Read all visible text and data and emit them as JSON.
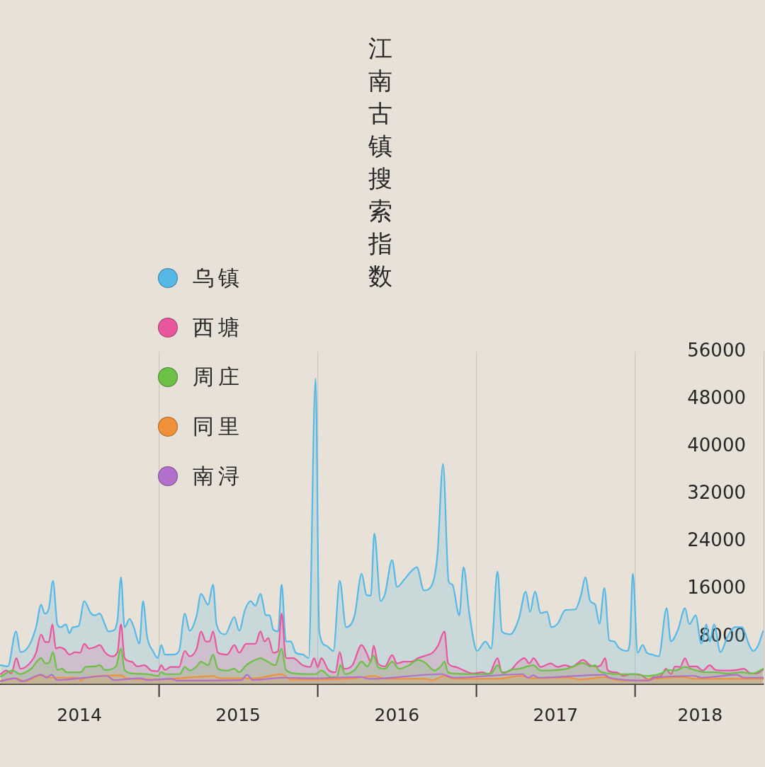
{
  "chart_data": {
    "type": "area",
    "title": "江南古镇搜索指数",
    "legend": "top left",
    "grid": "x",
    "marker": "none",
    "xlim": [
      2014,
      2018.81
    ],
    "xticks": [
      {
        "value": 2014.5,
        "label": "2014"
      },
      {
        "value": 2015,
        "label": null
      },
      {
        "value": 2015.5,
        "label": "2015"
      },
      {
        "value": 2016,
        "label": null
      },
      {
        "value": 2016.5,
        "label": "2016"
      },
      {
        "value": 2017,
        "label": null
      },
      {
        "value": 2017.5,
        "label": "2017"
      },
      {
        "value": 2018,
        "label": null
      },
      {
        "value": 2018.41,
        "label": "2018"
      }
    ],
    "ylim": [
      0,
      56000
    ],
    "yticks": [
      8000,
      16000,
      24000,
      32000,
      40000,
      48000,
      56000
    ],
    "series": [
      {
        "name": "乌镇",
        "color": "#55b8e6",
        "x": [
          2014.004,
          2014.049,
          2014.101,
          2014.129,
          2014.183,
          2014.227,
          2014.259,
          2014.281,
          2014.308,
          2014.334,
          2014.361,
          2014.383,
          2014.415,
          2014.437,
          2014.459,
          2014.495,
          2014.531,
          2014.571,
          2014.597,
          2014.629,
          2014.66,
          2014.682,
          2014.709,
          2014.74,
          2014.762,
          2014.785,
          2014.816,
          2014.843,
          2014.878,
          2014.901,
          2014.927,
          2014.963,
          2014.994,
          2015.016,
          2015.039,
          2015.088,
          2015.128,
          2015.164,
          2015.195,
          2015.239,
          2015.266,
          2015.311,
          2015.342,
          2015.364,
          2015.418,
          2015.476,
          2015.507,
          2015.543,
          2015.578,
          2015.609,
          2015.64,
          2015.676,
          2015.699,
          2015.721,
          2015.752,
          2015.774,
          2015.801,
          2015.832,
          2015.863,
          2015.908,
          2015.944,
          2015.988,
          2016.011,
          2016.055,
          2016.1,
          2016.14,
          2016.18,
          2016.234,
          2016.278,
          2016.309,
          2016.336,
          2016.358,
          2016.398,
          2016.425,
          2016.47,
          2016.501,
          2016.546,
          2016.59,
          2016.626,
          2016.67,
          2016.715,
          2016.755,
          2016.791,
          2016.826,
          2016.849,
          2016.893,
          2016.92,
          2016.956,
          2017.005,
          2017.058,
          2017.094,
          2017.134,
          2017.161,
          2017.214,
          2017.268,
          2017.312,
          2017.339,
          2017.37,
          2017.406,
          2017.446,
          2017.473,
          2017.513,
          2017.562,
          2017.624,
          2017.66,
          2017.687,
          2017.718,
          2017.749,
          2017.776,
          2017.807,
          2017.838,
          2017.869,
          2017.896,
          2017.95,
          2017.968,
          2017.986,
          2018.017,
          2018.048,
          2018.075,
          2018.106,
          2018.15,
          2018.199,
          2018.226,
          2018.271,
          2018.315,
          2018.342,
          2018.382,
          2018.418,
          2018.449,
          2018.471,
          2018.498,
          2018.538,
          2018.583,
          2018.628,
          2018.672,
          2018.721,
          2018.744,
          2018.775,
          2018.806
        ],
        "values": [
          3200,
          3000,
          8900,
          5400,
          6500,
          9600,
          13400,
          11900,
          12800,
          17400,
          10100,
          9600,
          10100,
          8600,
          9600,
          9800,
          14000,
          12000,
          11600,
          11900,
          10100,
          8900,
          9000,
          10800,
          18000,
          9600,
          11000,
          9600,
          6800,
          14000,
          8000,
          5600,
          4400,
          6600,
          5000,
          5000,
          5600,
          11900,
          9000,
          11600,
          15200,
          13400,
          16800,
          10100,
          8400,
          11300,
          9000,
          12500,
          14000,
          13200,
          15200,
          11600,
          11600,
          9200,
          8900,
          16800,
          7200,
          7200,
          5300,
          5000,
          4400,
          51500,
          8900,
          6500,
          5600,
          17400,
          9600,
          11600,
          18600,
          15000,
          14900,
          25400,
          14000,
          15200,
          20900,
          16400,
          17600,
          19000,
          19700,
          15800,
          16400,
          21600,
          37100,
          17300,
          16800,
          11600,
          19700,
          12000,
          5600,
          7200,
          6000,
          19000,
          8900,
          8400,
          11000,
          15600,
          12200,
          15600,
          12000,
          12200,
          9600,
          10200,
          12500,
          12600,
          15000,
          18000,
          14000,
          13400,
          10200,
          16200,
          7400,
          7200,
          6200,
          5600,
          7200,
          18600,
          5300,
          6600,
          5300,
          5000,
          4700,
          12800,
          7200,
          9200,
          12800,
          10100,
          11600,
          6800,
          10100,
          7200,
          10100,
          5400,
          8000,
          9600,
          9600,
          6500,
          5600,
          6500,
          8900
        ]
      },
      {
        "name": "西塘",
        "color": "#e8569e",
        "x": [
          2014.004,
          2014.04,
          2014.071,
          2014.103,
          2014.129,
          2014.196,
          2014.227,
          2014.259,
          2014.285,
          2014.308,
          2014.33,
          2014.352,
          2014.374,
          2014.406,
          2014.437,
          2014.473,
          2014.504,
          2014.531,
          2014.562,
          2014.593,
          2014.629,
          2014.664,
          2014.704,
          2014.74,
          2014.762,
          2014.785,
          2014.829,
          2014.865,
          2014.909,
          2014.954,
          2014.994,
          2015.016,
          2015.039,
          2015.074,
          2015.128,
          2015.164,
          2015.195,
          2015.239,
          2015.266,
          2015.297,
          2015.32,
          2015.342,
          2015.373,
          2015.431,
          2015.476,
          2015.507,
          2015.551,
          2015.609,
          2015.64,
          2015.667,
          2015.69,
          2015.721,
          2015.752,
          2015.774,
          2015.801,
          2015.846,
          2015.908,
          2015.953,
          2015.979,
          2016.002,
          2016.024,
          2016.069,
          2016.113,
          2016.14,
          2016.167,
          2016.22,
          2016.278,
          2016.309,
          2016.336,
          2016.354,
          2016.381,
          2016.425,
          2016.47,
          2016.501,
          2016.546,
          2016.59,
          2016.635,
          2016.679,
          2016.724,
          2016.759,
          2016.8,
          2016.822,
          2016.871,
          2016.915,
          2016.978,
          2017.036,
          2017.08,
          2017.134,
          2017.161,
          2017.214,
          2017.259,
          2017.303,
          2017.335,
          2017.361,
          2017.406,
          2017.468,
          2017.513,
          2017.557,
          2017.602,
          2017.673,
          2017.718,
          2017.763,
          2017.785,
          2017.812,
          2017.829,
          2017.883,
          2017.927,
          2017.972,
          2018.017,
          2018.048,
          2018.083,
          2018.119,
          2018.164,
          2018.195,
          2018.226,
          2018.253,
          2018.284,
          2018.315,
          2018.342,
          2018.387,
          2018.427,
          2018.471,
          2018.507,
          2018.552,
          2018.596,
          2018.641,
          2018.685,
          2018.73,
          2018.766,
          2018.806
        ],
        "values": [
          1700,
          2300,
          1800,
          4400,
          2600,
          3800,
          5300,
          8400,
          7100,
          7100,
          10100,
          6000,
          6200,
          5900,
          5000,
          5400,
          5300,
          6800,
          6000,
          6200,
          6600,
          5300,
          4700,
          5400,
          10100,
          4400,
          3800,
          3000,
          3200,
          2300,
          2200,
          3200,
          2400,
          2900,
          2900,
          5600,
          4700,
          6000,
          8900,
          7200,
          7200,
          8900,
          5300,
          5000,
          6600,
          5300,
          6800,
          6800,
          8900,
          7200,
          7800,
          5300,
          5600,
          11900,
          4400,
          4400,
          3200,
          2900,
          4400,
          2900,
          4400,
          2400,
          2000,
          5400,
          2600,
          3200,
          6600,
          5300,
          3800,
          6500,
          3500,
          3000,
          4900,
          3500,
          3800,
          3800,
          4400,
          4800,
          5300,
          6500,
          8900,
          3600,
          2900,
          2400,
          1800,
          2000,
          1700,
          4400,
          2000,
          2300,
          3600,
          4400,
          3500,
          4400,
          2900,
          3500,
          2900,
          3200,
          2900,
          4100,
          3200,
          3000,
          3200,
          4400,
          2300,
          2000,
          1400,
          1700,
          1700,
          1400,
          800,
          1200,
          1400,
          2600,
          1700,
          3000,
          2900,
          4400,
          3000,
          3000,
          2300,
          3200,
          2400,
          2300,
          2300,
          2400,
          2600,
          1800,
          1800,
          2400
        ]
      },
      {
        "name": "周庄",
        "color": "#6cbf47",
        "x": [
          2014.004,
          2014.08,
          2014.125,
          2014.196,
          2014.259,
          2014.285,
          2014.308,
          2014.334,
          2014.361,
          2014.392,
          2014.419,
          2014.508,
          2014.539,
          2014.597,
          2014.629,
          2014.66,
          2014.731,
          2014.762,
          2014.785,
          2014.838,
          2014.927,
          2014.994,
          2015.016,
          2015.043,
          2015.132,
          2015.164,
          2015.195,
          2015.239,
          2015.266,
          2015.311,
          2015.342,
          2015.373,
          2015.431,
          2015.476,
          2015.507,
          2015.551,
          2015.609,
          2015.64,
          2015.685,
          2015.734,
          2015.774,
          2015.801,
          2015.863,
          2015.953,
          2015.988,
          2016.024,
          2016.086,
          2016.122,
          2016.144,
          2016.176,
          2016.234,
          2016.278,
          2016.314,
          2016.354,
          2016.381,
          2016.425,
          2016.47,
          2016.514,
          2016.577,
          2016.635,
          2016.679,
          2016.737,
          2016.777,
          2016.8,
          2016.822,
          2016.871,
          2016.947,
          2017.036,
          2017.094,
          2017.134,
          2017.17,
          2017.214,
          2017.272,
          2017.361,
          2017.406,
          2017.513,
          2017.571,
          2017.629,
          2017.673,
          2017.718,
          2017.749,
          2017.771,
          2017.838,
          2017.896,
          2017.986,
          2018.075,
          2018.164,
          2018.204,
          2018.253,
          2018.315,
          2018.373,
          2018.449,
          2018.507,
          2018.583,
          2018.672,
          2018.743,
          2018.806
        ],
        "values": [
          1300,
          2300,
          1700,
          2600,
          4400,
          3500,
          3600,
          5400,
          2400,
          2600,
          2000,
          2000,
          2900,
          3000,
          3200,
          2400,
          3000,
          6000,
          2400,
          1800,
          1700,
          1400,
          2000,
          1700,
          1700,
          2900,
          2300,
          3000,
          3800,
          3200,
          5000,
          2600,
          2300,
          2600,
          2000,
          3200,
          4100,
          4400,
          3800,
          3200,
          6000,
          2400,
          1800,
          1700,
          1700,
          2300,
          1200,
          1200,
          3200,
          1700,
          2400,
          3800,
          3000,
          4800,
          2900,
          2600,
          3800,
          2600,
          3200,
          4100,
          3600,
          2300,
          3000,
          3800,
          2000,
          1800,
          1700,
          1700,
          1800,
          3200,
          1800,
          2400,
          2600,
          3200,
          2300,
          2400,
          2600,
          3200,
          3600,
          3000,
          3200,
          2300,
          1800,
          1700,
          1700,
          1400,
          1800,
          2400,
          2300,
          2900,
          2400,
          2000,
          2000,
          1800,
          2000,
          1800,
          2600
        ]
      },
      {
        "name": "同里",
        "color": "#f0913a",
        "x": [
          2014.004,
          2014.094,
          2014.16,
          2014.205,
          2014.259,
          2014.317,
          2014.495,
          2014.508,
          2014.531,
          2014.762,
          2014.798,
          2014.985,
          2015.266,
          2015.342,
          2015.386,
          2015.609,
          2015.774,
          2015.832,
          2016.011,
          2016.234,
          2016.354,
          2016.434,
          2016.679,
          2016.724,
          2016.8,
          2016.858,
          2017.125,
          2017.281,
          2017.348,
          2017.571,
          2017.66,
          2017.807,
          2017.883,
          2018.017,
          2018.106,
          2018.315,
          2018.373,
          2018.806
        ],
        "values": [
          600,
          1000,
          500,
          1000,
          1500,
          1100,
          1100,
          600,
          1000,
          1500,
          1000,
          800,
          1300,
          1400,
          1000,
          1000,
          1700,
          800,
          800,
          1000,
          1400,
          900,
          900,
          700,
          1400,
          900,
          900,
          1400,
          1000,
          1100,
          800,
          1200,
          700,
          600,
          900,
          1200,
          900,
          900
        ]
      },
      {
        "name": "南浔",
        "color": "#b070cc",
        "type": "line",
        "x": [
          2014.004,
          2014.094,
          2014.138,
          2014.259,
          2014.294,
          2014.325,
          2014.361,
          2014.673,
          2014.718,
          2014.883,
          2014.927,
          2015.074,
          2015.119,
          2015.52,
          2015.556,
          2015.592,
          2015.788,
          2015.966,
          2016.278,
          2016.323,
          2016.782,
          2016.858,
          2017.29,
          2017.326,
          2017.361,
          2017.392,
          2017.807,
          2017.838,
          2018.083,
          2018.128,
          2018.373,
          2018.418,
          2018.641,
          2018.685,
          2018.806
        ],
        "values": [
          500,
          1000,
          500,
          1600,
          1100,
          1600,
          700,
          1400,
          700,
          1000,
          700,
          900,
          600,
          700,
          1600,
          700,
          1100,
          1000,
          1200,
          900,
          1700,
          1100,
          1700,
          1100,
          1500,
          1100,
          1600,
          1100,
          600,
          1100,
          1400,
          1100,
          1600,
          1100,
          1100
        ]
      }
    ]
  }
}
